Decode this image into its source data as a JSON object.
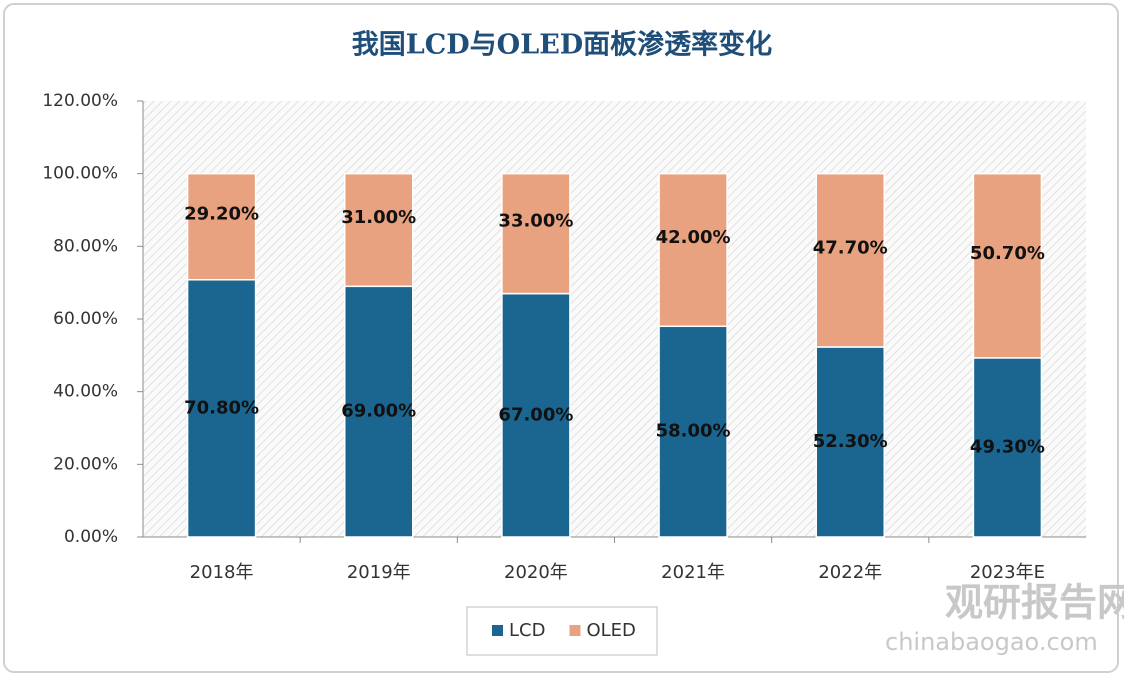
{
  "chart_data": {
    "type": "stacked_bar",
    "title": "我国LCD与OLED面板渗透率变化",
    "categories": [
      "2018年",
      "2019年",
      "2020年",
      "2021年",
      "2022年",
      "2023年E"
    ],
    "series": [
      {
        "name": "LCD",
        "color": "#1b6690",
        "values": [
          70.8,
          69,
          67,
          58,
          52.3,
          49.3
        ],
        "value_labels": [
          "70.80%",
          "69.00%",
          "67.00%",
          "58.00%",
          "52.30%",
          "49.30%"
        ]
      },
      {
        "name": "OLED",
        "color": "#e9a27f",
        "values": [
          29.2,
          31,
          33,
          42,
          47.7,
          50.7
        ],
        "value_labels": [
          "29.20%",
          "31.00%",
          "33.00%",
          "42.00%",
          "47.70%",
          "50.70%"
        ]
      }
    ],
    "ylim": [
      0,
      120
    ],
    "yticks": [
      {
        "value": 0,
        "label": "0.00%"
      },
      {
        "value": 20,
        "label": "20.00%"
      },
      {
        "value": 40,
        "label": "40.00%"
      },
      {
        "value": 60,
        "label": "60.00%"
      },
      {
        "value": 80,
        "label": "80.00%"
      },
      {
        "value": 100,
        "label": "100.00%"
      },
      {
        "value": 120,
        "label": "120.00%"
      }
    ],
    "legend": "bottom",
    "watermark": {
      "name": "观研报告网",
      "url": "chinabaogao.com"
    }
  }
}
